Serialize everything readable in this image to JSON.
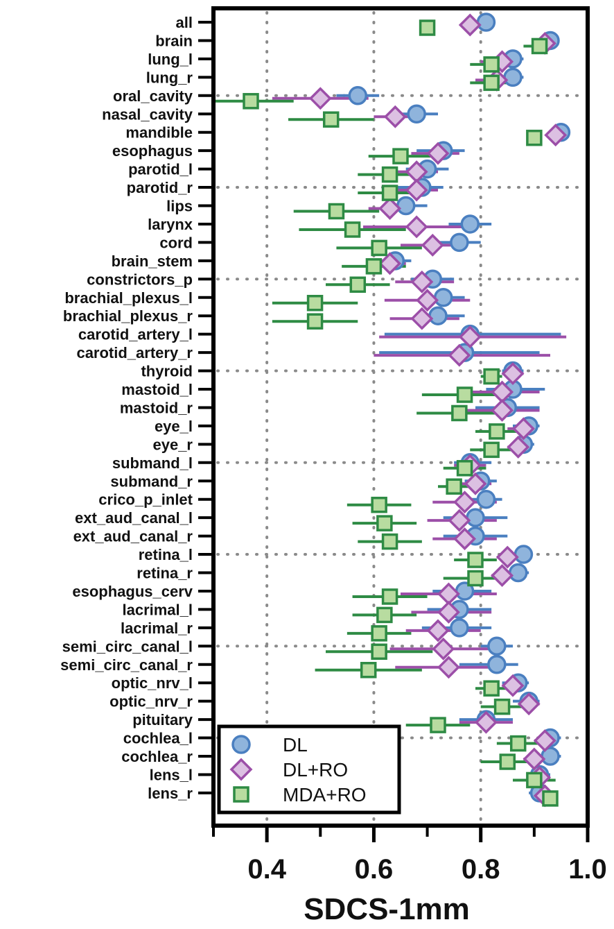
{
  "chart_data": {
    "type": "scatter",
    "orientation": "horizontal",
    "xlabel": "SDCS-1mm",
    "ylabel": "",
    "xlim": [
      0.3,
      1.0
    ],
    "xticks": [
      0.4,
      0.6,
      0.8,
      1.0
    ],
    "xtick_labels": [
      "0.4",
      "0.6",
      "0.8",
      "1.0"
    ],
    "grid": "dotted",
    "legend_position": "bottom-left",
    "categories": [
      "all",
      "brain",
      "lung_l",
      "lung_r",
      "oral_cavity",
      "nasal_cavity",
      "mandible",
      "esophagus",
      "parotid_l",
      "parotid_r",
      "lips",
      "larynx",
      "cord",
      "brain_stem",
      "constrictors_p",
      "brachial_plexus_l",
      "brachial_plexus_r",
      "carotid_artery_l",
      "carotid_artery_r",
      "thyroid",
      "mastoid_l",
      "mastoid_r",
      "eye_l",
      "eye_r",
      "submand_l",
      "submand_r",
      "crico_p_inlet",
      "ext_aud_canal_l",
      "ext_aud_canal_r",
      "retina_l",
      "retina_r",
      "esophagus_cerv",
      "lacrimal_l",
      "lacrimal_r",
      "semi_circ_canal_l",
      "semi_circ_canal_r",
      "optic_nrv_l",
      "optic_nrv_r",
      "pituitary",
      "cochlea_l",
      "cochlea_r",
      "lens_l",
      "lens_r"
    ],
    "series": [
      {
        "name": "DL",
        "marker": "circle",
        "fill": "#8fb4dc",
        "stroke": "#4a7fc0",
        "bar_color": "#4a7fc0",
        "values": [
          0.81,
          0.93,
          0.86,
          0.86,
          0.57,
          0.68,
          0.95,
          0.73,
          0.7,
          0.69,
          0.66,
          0.78,
          0.76,
          0.64,
          0.71,
          0.73,
          0.72,
          0.78,
          0.77,
          0.86,
          0.86,
          0.85,
          0.89,
          0.88,
          0.78,
          0.8,
          0.81,
          0.79,
          0.79,
          0.88,
          0.87,
          0.77,
          0.76,
          0.76,
          0.83,
          0.83,
          0.87,
          0.89,
          0.81,
          0.93,
          0.93,
          0.91,
          0.91
        ],
        "low": [
          0.81,
          0.91,
          0.83,
          0.82,
          0.53,
          0.64,
          0.94,
          0.68,
          0.66,
          0.64,
          0.62,
          0.74,
          0.72,
          0.61,
          0.67,
          0.69,
          0.68,
          0.62,
          0.61,
          0.84,
          0.81,
          0.79,
          0.86,
          0.86,
          0.75,
          0.77,
          0.77,
          0.73,
          0.73,
          0.86,
          0.85,
          0.71,
          0.7,
          0.69,
          0.8,
          0.76,
          0.84,
          0.86,
          0.76,
          0.91,
          0.89,
          0.89,
          0.89
        ],
        "high": [
          0.81,
          0.94,
          0.88,
          0.88,
          0.61,
          0.72,
          0.96,
          0.77,
          0.74,
          0.73,
          0.7,
          0.82,
          0.8,
          0.67,
          0.75,
          0.77,
          0.77,
          0.95,
          0.91,
          0.88,
          0.92,
          0.91,
          0.91,
          0.9,
          0.82,
          0.83,
          0.84,
          0.85,
          0.85,
          0.89,
          0.89,
          0.82,
          0.82,
          0.82,
          0.86,
          0.87,
          0.89,
          0.91,
          0.86,
          0.95,
          0.95,
          0.93,
          0.93
        ]
      },
      {
        "name": "DL+RO",
        "marker": "diamond",
        "fill": "#dcc0e2",
        "stroke": "#9c4fa8",
        "bar_color": "#9c4fa8",
        "values": [
          0.78,
          0.92,
          0.84,
          0.83,
          0.5,
          0.64,
          0.94,
          0.72,
          0.68,
          0.68,
          0.63,
          0.68,
          0.71,
          0.63,
          0.69,
          0.7,
          0.69,
          0.78,
          0.76,
          0.86,
          0.84,
          0.84,
          0.88,
          0.87,
          0.78,
          0.79,
          0.77,
          0.76,
          0.77,
          0.85,
          0.84,
          0.74,
          0.74,
          0.72,
          0.73,
          0.74,
          0.86,
          0.89,
          0.81,
          0.92,
          0.9,
          0.91,
          0.92
        ],
        "low": [
          0.78,
          0.9,
          0.8,
          0.79,
          0.41,
          0.6,
          0.94,
          0.67,
          0.64,
          0.64,
          0.59,
          0.58,
          0.65,
          0.6,
          0.64,
          0.62,
          0.63,
          0.61,
          0.6,
          0.84,
          0.77,
          0.77,
          0.85,
          0.85,
          0.75,
          0.76,
          0.71,
          0.7,
          0.71,
          0.83,
          0.82,
          0.65,
          0.67,
          0.66,
          0.63,
          0.64,
          0.84,
          0.88,
          0.76,
          0.9,
          0.88,
          0.89,
          0.91
        ],
        "high": [
          0.78,
          0.93,
          0.87,
          0.87,
          0.59,
          0.68,
          0.95,
          0.76,
          0.72,
          0.72,
          0.67,
          0.78,
          0.77,
          0.66,
          0.75,
          0.78,
          0.76,
          0.96,
          0.93,
          0.88,
          0.91,
          0.91,
          0.9,
          0.89,
          0.81,
          0.82,
          0.83,
          0.83,
          0.83,
          0.87,
          0.86,
          0.83,
          0.82,
          0.8,
          0.83,
          0.84,
          0.88,
          0.91,
          0.86,
          0.93,
          0.92,
          0.93,
          0.93
        ]
      },
      {
        "name": "MDA+RO",
        "marker": "square",
        "fill": "#b8dca0",
        "stroke": "#2e8b44",
        "bar_color": "#2e8b44",
        "values": [
          0.7,
          0.91,
          0.82,
          0.82,
          0.37,
          0.52,
          0.9,
          0.65,
          0.63,
          0.63,
          0.53,
          0.56,
          0.61,
          0.6,
          0.57,
          0.49,
          0.49,
          null,
          null,
          0.82,
          0.77,
          0.76,
          0.83,
          0.82,
          0.77,
          0.75,
          0.61,
          0.62,
          0.63,
          0.79,
          0.79,
          0.63,
          0.62,
          0.61,
          0.61,
          0.59,
          0.82,
          0.84,
          0.72,
          0.87,
          0.85,
          0.9,
          0.93
        ],
        "low": [
          0.7,
          0.88,
          0.78,
          0.78,
          0.3,
          0.44,
          0.89,
          0.59,
          0.57,
          0.57,
          0.45,
          0.46,
          0.53,
          0.54,
          0.51,
          0.41,
          0.41,
          null,
          null,
          0.8,
          0.69,
          0.68,
          0.79,
          0.78,
          0.73,
          0.72,
          0.55,
          0.56,
          0.57,
          0.75,
          0.73,
          0.56,
          0.56,
          0.55,
          0.51,
          0.49,
          0.79,
          0.8,
          0.66,
          0.83,
          0.8,
          0.86,
          0.92
        ],
        "high": [
          0.7,
          0.94,
          0.86,
          0.86,
          0.45,
          0.6,
          0.91,
          0.71,
          0.69,
          0.69,
          0.61,
          0.66,
          0.69,
          0.66,
          0.63,
          0.57,
          0.57,
          null,
          null,
          0.84,
          0.85,
          0.84,
          0.87,
          0.86,
          0.81,
          0.78,
          0.67,
          0.68,
          0.69,
          0.83,
          0.85,
          0.7,
          0.68,
          0.67,
          0.71,
          0.69,
          0.85,
          0.88,
          0.78,
          0.91,
          0.9,
          0.94,
          0.94
        ]
      }
    ]
  }
}
